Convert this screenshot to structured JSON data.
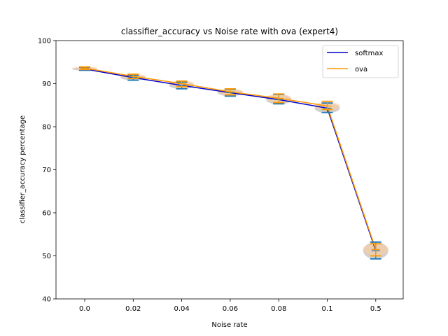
{
  "chart_data": {
    "type": "line",
    "title": "classifier_accuracy vs Noise rate with ova (expert4)",
    "xlabel": "Noise rate",
    "ylabel": "classifier_accuracy percentage",
    "categories": [
      "0.0",
      "0.02",
      "0.04",
      "0.06",
      "0.08",
      "0.1",
      "0.5"
    ],
    "ylim": [
      40,
      100
    ],
    "yticks": [
      40,
      50,
      60,
      70,
      80,
      90,
      100
    ],
    "grid": false,
    "legend_position": "top-right",
    "series": [
      {
        "name": "softmax",
        "color": "#0000cc",
        "values": [
          93.4,
          91.4,
          89.6,
          87.9,
          86.3,
          84.3,
          51.2
        ],
        "err_low": [
          93.1,
          90.8,
          88.8,
          87.1,
          85.3,
          83.3,
          49.3
        ],
        "err_high": [
          93.8,
          92.0,
          90.4,
          88.7,
          87.5,
          85.5,
          53.2
        ],
        "err_color": "#1f77b4",
        "violin_color": "#b0b0b0"
      },
      {
        "name": "ova",
        "color": "#ff9900",
        "values": [
          93.6,
          91.7,
          90.0,
          88.1,
          86.6,
          84.8,
          51.5
        ],
        "err_low": [
          93.3,
          91.2,
          89.3,
          87.4,
          85.6,
          84.0,
          50.0
        ],
        "err_high": [
          93.9,
          92.2,
          90.6,
          88.8,
          87.6,
          85.9,
          52.8
        ],
        "err_color": "#ff9900",
        "violin_color": "#ffcc99"
      }
    ]
  }
}
